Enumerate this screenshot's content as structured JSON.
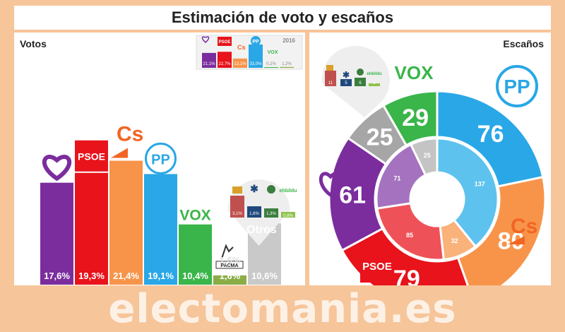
{
  "title": "Estimación de voto y escaños",
  "watermark": "electomania.es",
  "left_panel": {
    "label": "Votos"
  },
  "right_panel": {
    "label": "Escaños"
  },
  "chart_data": [
    {
      "type": "bar",
      "name_label": "Votos",
      "categories": [
        "Podemos",
        "PSOE",
        "Cs",
        "PP",
        "VOX",
        "PACMA",
        "Otros"
      ],
      "values": [
        17.6,
        19.3,
        21.4,
        19.1,
        10.4,
        1.6,
        10.6
      ],
      "value_labels": [
        "17,6%",
        "19,3%",
        "21,4%",
        "19,1%",
        "10,4%",
        "1,6%",
        "10,6%"
      ],
      "colors": [
        "#7b2d9e",
        "#e8131b",
        "#f7944a",
        "#2aa7e6",
        "#3ab54a",
        "#8bad46",
        "#c9c9c9"
      ],
      "logo_texts": {
        "PSOE": "PSOE",
        "Cs": "Cs",
        "PP": "PP",
        "VOX": "VOX",
        "PACMA": "PACMA",
        "Otros": "Otros"
      },
      "otros_breakdown": {
        "values": [
          3.1,
          1.6,
          1.3,
          0.8
        ],
        "labels": [
          "3,1%",
          "1,6%",
          "1,3%",
          "0,8%"
        ],
        "colors": [
          "#c0504d",
          "#1f497d",
          "#3a7d3e",
          "#8bc34a"
        ],
        "logo_text": "ehbildu"
      },
      "inset_2016": {
        "label": "2016",
        "values": [
          21.1,
          22.7,
          13.1,
          33.0,
          0.2,
          1.2
        ],
        "value_labels": [
          "21,1%",
          "22,7%",
          "13,1%",
          "33,0%",
          "0,2%",
          "1,2%"
        ],
        "colors": [
          "#7b2d9e",
          "#e8131b",
          "#f7944a",
          "#2aa7e6",
          "#3ab54a",
          "#8bad46"
        ],
        "logo_texts": {
          "PSOE": "PSOE",
          "Cs": "Cs",
          "PP": "PP",
          "VOX": "VOX"
        }
      }
    },
    {
      "type": "pie",
      "name_label": "Escaños",
      "outer": {
        "categories": [
          "PP",
          "Cs",
          "PSOE",
          "Podemos",
          "Otros",
          "VOX"
        ],
        "values": [
          76,
          80,
          79,
          61,
          25,
          29
        ],
        "colors": [
          "#2aa7e6",
          "#f7944a",
          "#e8131b",
          "#7b2d9e",
          "#a6a6a6",
          "#3ab54a"
        ]
      },
      "inner": {
        "categories": [
          "PP",
          "Cs",
          "PSOE",
          "Podemos",
          "Otros"
        ],
        "values": [
          137,
          32,
          85,
          71,
          25
        ],
        "colors": [
          "#5ec2ee",
          "#f9b27a",
          "#ee5258",
          "#a572c0",
          "#c4c4c4"
        ]
      },
      "otros_seats": {
        "values": [
          11,
          5,
          6,
          2
        ],
        "colors": [
          "#c0504d",
          "#1f497d",
          "#3a7d3e",
          "#8bc34a"
        ],
        "logo_text": "ehbildu"
      },
      "logo_texts": {
        "PP": "PP",
        "Cs": "Cs",
        "PSOE": "PSOE",
        "VOX": "VOX"
      }
    }
  ]
}
